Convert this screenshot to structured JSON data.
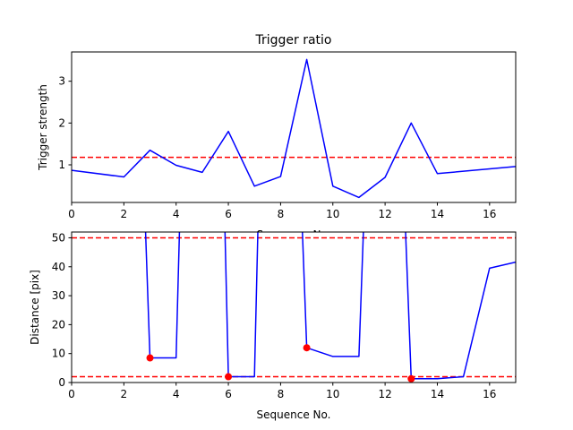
{
  "chart_data": [
    {
      "type": "line",
      "title": "Trigger ratio",
      "xlabel": "Sequence No.",
      "ylabel": "Trigger strength",
      "xlim": [
        0,
        17
      ],
      "ylim": [
        0.1,
        3.7
      ],
      "xticks": [
        "0",
        "2",
        "4",
        "6",
        "8",
        "10",
        "12",
        "14",
        "16"
      ],
      "yticks": [
        "1",
        "2",
        "3"
      ],
      "grid": false,
      "series": [
        {
          "color": "#0000ff",
          "x": [
            0,
            2,
            3,
            4,
            5,
            6,
            7,
            8,
            9,
            10,
            11,
            12,
            13,
            14,
            17
          ],
          "values": [
            0.87,
            0.71,
            1.35,
            0.99,
            0.82,
            1.8,
            0.49,
            0.72,
            3.52,
            0.49,
            0.22,
            0.7,
            2.0,
            0.79,
            0.96
          ]
        }
      ],
      "hlines": [
        {
          "y": 1.18,
          "color": "#ff0000",
          "style": "dashed"
        }
      ]
    },
    {
      "type": "line",
      "xlabel": "Sequence No.",
      "ylabel": "Distance [pix]",
      "xlim": [
        0,
        17
      ],
      "ylim": [
        0,
        52
      ],
      "xticks": [
        "0",
        "2",
        "4",
        "6",
        "8",
        "10",
        "12",
        "14",
        "16"
      ],
      "yticks": [
        "0",
        "10",
        "20",
        "30",
        "40",
        "50"
      ],
      "grid": false,
      "series": [
        {
          "color": "#0000ff",
          "x": [
            2.8,
            3,
            4,
            4.15,
            5.85,
            6,
            7,
            7.15,
            8.8,
            9,
            10,
            11,
            11.2,
            12.75,
            13,
            14,
            15,
            16,
            17
          ],
          "values": [
            60,
            8.5,
            8.5,
            60,
            60,
            2,
            2,
            60,
            60,
            12,
            9,
            9,
            60,
            60,
            1.3,
            1.3,
            2,
            39.5,
            41.6
          ]
        }
      ],
      "points": {
        "color": "#ff0000",
        "x": [
          3,
          6,
          9,
          13
        ],
        "values": [
          8.5,
          2,
          12,
          1.3
        ]
      },
      "hlines": [
        {
          "y": 50,
          "color": "#ff0000",
          "style": "dashed"
        },
        {
          "y": 2,
          "color": "#ff0000",
          "style": "dashed"
        }
      ]
    }
  ]
}
